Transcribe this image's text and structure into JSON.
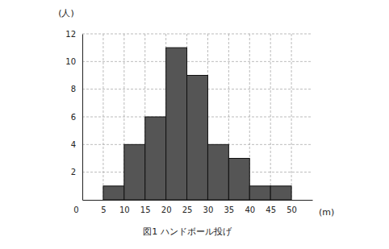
{
  "chart_data": {
    "type": "histogram",
    "title": "図1 ハンドボール投げ",
    "x_label": "(m)",
    "y_label": "(人)",
    "bins": [
      5,
      10,
      15,
      20,
      25,
      30,
      35,
      40,
      45,
      50
    ],
    "values": [
      1,
      4,
      6,
      11,
      9,
      4,
      3,
      1,
      1
    ],
    "color": "#555555",
    "xlim": [
      0,
      55
    ],
    "ylim": [
      0,
      12
    ],
    "xticks": [
      0,
      5,
      10,
      15,
      20,
      25,
      30,
      35,
      40,
      45,
      50
    ],
    "yticks": [
      2,
      4,
      6,
      8,
      10,
      12
    ],
    "grid": true
  }
}
